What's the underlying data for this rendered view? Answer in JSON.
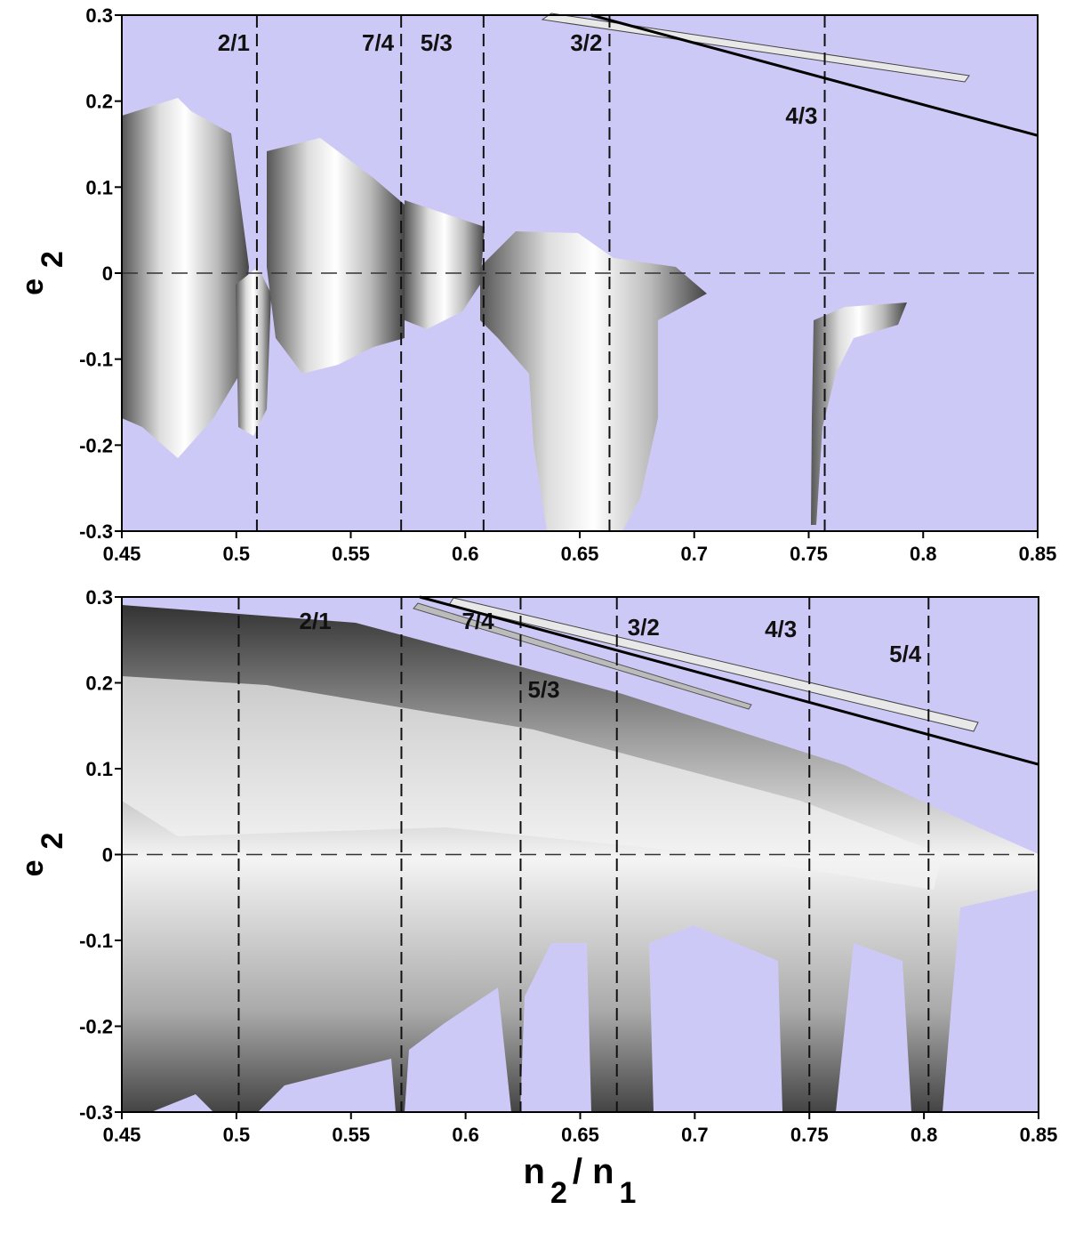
{
  "chart_data": [
    {
      "type": "stability-map",
      "xlim": [
        0.45,
        0.85
      ],
      "ylim": [
        -0.3,
        0.3
      ],
      "xticks": [
        0.45,
        0.5,
        0.55,
        0.6,
        0.65,
        0.7,
        0.75,
        0.8,
        0.85
      ],
      "yticks": [
        0.3,
        0.2,
        0.1,
        0,
        -0.1,
        -0.2,
        -0.3
      ],
      "ylabel": [
        "e",
        "2"
      ],
      "hline": 0,
      "resonances": [
        {
          "label": "2/1",
          "x": 0.509
        },
        {
          "label": "7/4",
          "x": 0.572
        },
        {
          "label": "5/3",
          "x": 0.608
        },
        {
          "label": "3/2",
          "x": 0.663
        },
        {
          "label": "4/3",
          "x": 0.757
        }
      ],
      "series": [
        {
          "x": [
            0.655,
            0.85
          ],
          "y": [
            0.3,
            0.16
          ],
          "color": "#000000"
        }
      ]
    },
    {
      "type": "stability-map",
      "xlim": [
        0.45,
        0.85
      ],
      "ylim": [
        -0.3,
        0.3
      ],
      "xticks": [
        0.45,
        0.5,
        0.55,
        0.6,
        0.65,
        0.7,
        0.75,
        0.8,
        0.85
      ],
      "yticks": [
        0.3,
        0.2,
        0.1,
        0,
        -0.1,
        -0.2,
        -0.3
      ],
      "ylabel": [
        "e",
        "2"
      ],
      "xlabel": [
        "n",
        "2",
        "/ n",
        "1"
      ],
      "hline": 0,
      "resonances": [
        {
          "label": "2/1",
          "x": 0.501
        },
        {
          "label": "7/4",
          "x": 0.572
        },
        {
          "label": "5/3",
          "x": 0.624
        },
        {
          "label": "3/2",
          "x": 0.666
        },
        {
          "label": "4/3",
          "x": 0.75
        },
        {
          "label": "5/4",
          "x": 0.802
        }
      ],
      "series": [
        {
          "x": [
            0.58,
            0.85
          ],
          "y": [
            0.3,
            0.105
          ],
          "color": "#000000"
        }
      ]
    }
  ]
}
